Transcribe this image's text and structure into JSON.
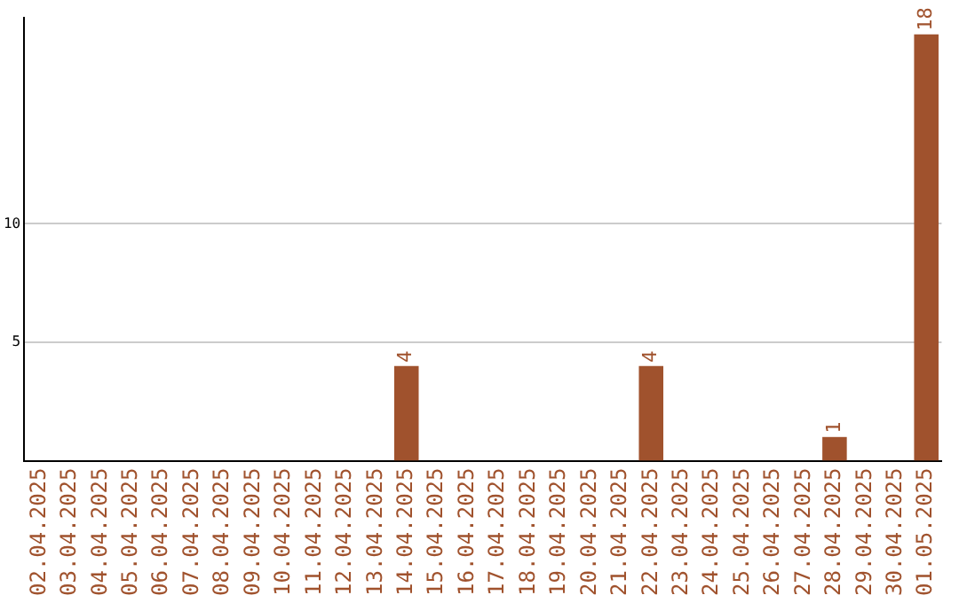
{
  "chart_data": {
    "type": "bar",
    "categories": [
      "02.04.2025",
      "03.04.2025",
      "04.04.2025",
      "05.04.2025",
      "06.04.2025",
      "07.04.2025",
      "08.04.2025",
      "09.04.2025",
      "10.04.2025",
      "11.04.2025",
      "12.04.2025",
      "13.04.2025",
      "14.04.2025",
      "15.04.2025",
      "16.04.2025",
      "17.04.2025",
      "18.04.2025",
      "19.04.2025",
      "20.04.2025",
      "21.04.2025",
      "22.04.2025",
      "23.04.2025",
      "24.04.2025",
      "25.04.2025",
      "26.04.2025",
      "27.04.2025",
      "28.04.2025",
      "29.04.2025",
      "30.04.2025",
      "01.05.2025"
    ],
    "values": [
      0,
      0,
      0,
      0,
      0,
      0,
      0,
      0,
      0,
      0,
      0,
      0,
      4,
      0,
      0,
      0,
      0,
      0,
      0,
      0,
      4,
      0,
      0,
      0,
      0,
      0,
      1,
      0,
      0,
      18
    ],
    "value_labels": [
      null,
      null,
      null,
      null,
      null,
      null,
      null,
      null,
      null,
      null,
      null,
      null,
      "4",
      null,
      null,
      null,
      null,
      null,
      null,
      null,
      "4",
      null,
      null,
      null,
      null,
      null,
      "1",
      null,
      null,
      "18"
    ],
    "color": "#a0522d",
    "ylim": [
      0,
      18.7
    ],
    "yticks": [
      5,
      10
    ],
    "grid": "y",
    "legend": false
  }
}
